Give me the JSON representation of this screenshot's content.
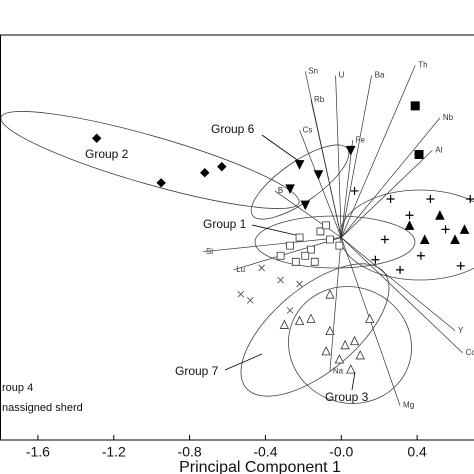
{
  "chart_data": {
    "type": "scatter",
    "x_label": "Principal Component 1",
    "xlim": [
      -1.8,
      0.7
    ],
    "ylim": [
      -1.0,
      1.0
    ],
    "xticks": [
      -1.6,
      -1.2,
      -0.8,
      -0.4,
      {
        "value": 0,
        "label": "-0.0"
      },
      0.4
    ],
    "series": [
      {
        "name": "Group 2",
        "marker": "diamond",
        "color": "#000000",
        "x": [
          -1.29,
          -0.95,
          -0.72,
          -0.63
        ],
        "y": [
          0.49,
          0.27,
          0.32,
          0.35
        ]
      },
      {
        "name": "Group 6",
        "marker": "triangle-down",
        "color": "#000000",
        "x": [
          -0.22,
          -0.12,
          -0.27,
          -0.19,
          0.05
        ],
        "y": [
          0.36,
          0.31,
          0.24,
          0.16,
          0.43
        ]
      },
      {
        "name": "Group 1",
        "marker": "square-open",
        "color": "#333333",
        "x": [
          -0.27,
          -0.22,
          -0.16,
          -0.11,
          -0.06,
          -0.14,
          -0.19,
          -0.01,
          -0.24,
          -0.32,
          -0.08
        ],
        "y": [
          -0.04,
          0.0,
          -0.06,
          0.03,
          -0.01,
          -0.12,
          -0.09,
          -0.04,
          -0.12,
          -0.09,
          0.06
        ]
      },
      {
        "name": "Group 3",
        "marker": "triangle-open",
        "color": "#333333",
        "x": [
          -0.06,
          0.02,
          0.07,
          -0.08,
          0.1,
          -0.01,
          -0.16,
          0.15,
          0.05,
          -0.22,
          -0.06,
          -0.3
        ],
        "y": [
          -0.46,
          -0.53,
          -0.51,
          -0.56,
          -0.58,
          -0.6,
          -0.4,
          -0.4,
          -0.65,
          -0.41,
          -0.28,
          -0.43
        ]
      },
      {
        "marker": "plus",
        "color": "#000000",
        "x": [
          0.26,
          0.36,
          0.23,
          0.42,
          0.55,
          0.31,
          0.63,
          0.47,
          0.18,
          0.68,
          0.07
        ],
        "y": [
          0.19,
          0.11,
          -0.01,
          -0.09,
          0.04,
          -0.16,
          -0.14,
          0.19,
          -0.11,
          0.19,
          0.23
        ]
      },
      {
        "marker": "triangle",
        "color": "#000000",
        "x": [
          0.36,
          0.52,
          0.6,
          0.44,
          0.65
        ],
        "y": [
          0.06,
          0.11,
          -0.01,
          -0.01,
          0.04
        ]
      },
      {
        "name": "roup 4",
        "marker": "square",
        "color": "#000000",
        "x": [
          0.39,
          0.41
        ],
        "y": [
          0.65,
          0.41
        ]
      },
      {
        "name": "nassigned sherd",
        "marker": "x",
        "color": "#555555",
        "x": [
          -0.48,
          -0.32,
          -0.53,
          -0.22,
          -0.42,
          -0.27
        ],
        "y": [
          -0.31,
          -0.21,
          -0.28,
          -0.23,
          -0.15,
          -0.36
        ]
      }
    ],
    "group_7": "Group 7",
    "vectors": [
      {
        "name": "Sn",
        "x": -0.19,
        "y": 0.82
      },
      {
        "name": "Rb",
        "x": -0.16,
        "y": 0.68
      },
      {
        "name": "Cs",
        "x": -0.22,
        "y": 0.53
      },
      {
        "name": "U",
        "x": -0.03,
        "y": 0.8
      },
      {
        "name": "Ba",
        "x": 0.16,
        "y": 0.8
      },
      {
        "name": "Th",
        "x": 0.39,
        "y": 0.85
      },
      {
        "name": "Nb",
        "x": 0.52,
        "y": 0.59
      },
      {
        "name": "Al",
        "x": 0.48,
        "y": 0.43
      },
      {
        "name": "Fe",
        "x": 0.06,
        "y": 0.48
      },
      {
        "name": "B",
        "x": -0.35,
        "y": 0.23
      },
      {
        "name": "Si",
        "x": -0.73,
        "y": -0.07
      },
      {
        "name": "Lu",
        "x": -0.57,
        "y": -0.16
      },
      {
        "name": "Na",
        "x": -0.06,
        "y": -0.66
      },
      {
        "name": "Mg",
        "x": 0.31,
        "y": -0.83
      },
      {
        "name": "Co",
        "x": 0.64,
        "y": -0.57
      },
      {
        "name": "Y",
        "x": 0.6,
        "y": -0.46
      }
    ]
  }
}
